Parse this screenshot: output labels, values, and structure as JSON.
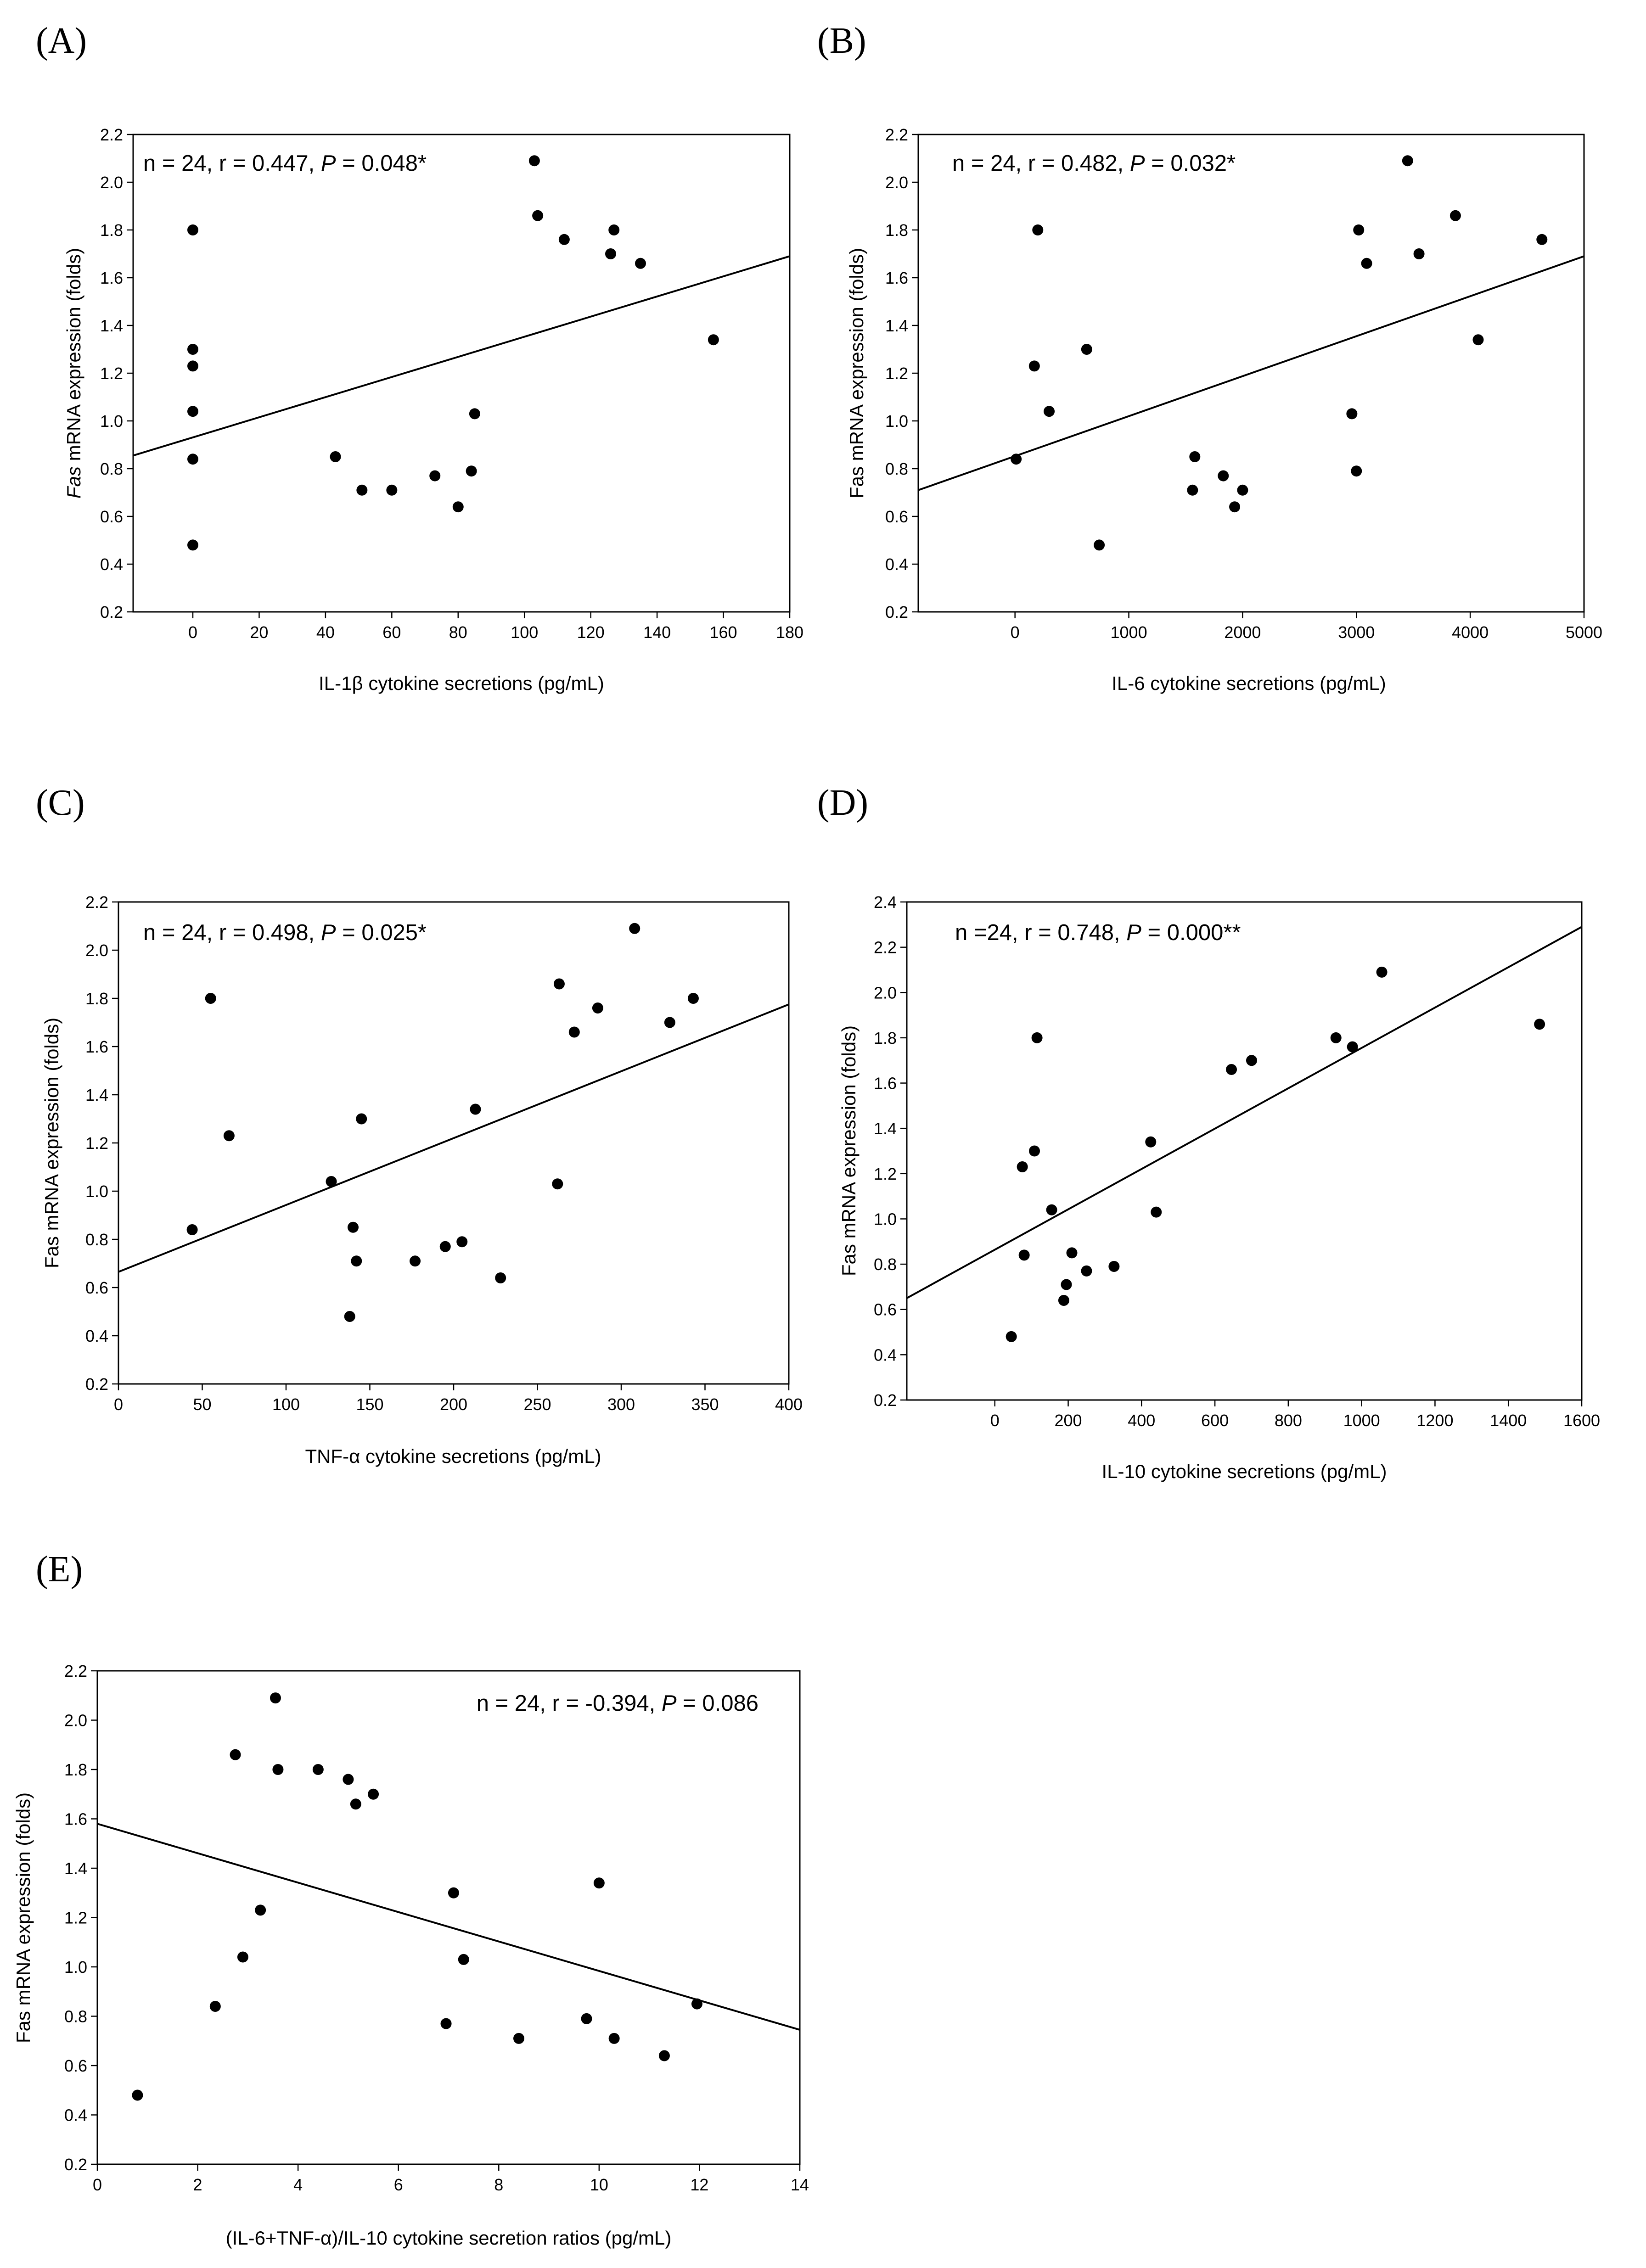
{
  "chart_data": [
    {
      "type": "scatter",
      "panel_label": "(A)",
      "annotation": {
        "pre": "n = 24, r = 0.447, ",
        "p_symbol": "P",
        "post": " = 0.048*"
      },
      "xlabel": {
        "parts": [
          {
            "text": "IL-1β cytokine secretions (pg/mL)",
            "italic": false
          }
        ]
      },
      "ylabel": {
        "parts": [
          {
            "text": "Fas",
            "italic": true
          },
          {
            "text": " mRNA expression (folds)",
            "italic": false
          }
        ]
      },
      "xlim": [
        -18,
        180
      ],
      "ylim": [
        0.2,
        2.2
      ],
      "xticks": [
        0,
        20,
        40,
        60,
        80,
        100,
        120,
        140,
        160,
        180
      ],
      "yticks": [
        "0.2",
        "0.4",
        "0.6",
        "0.8",
        "1.0",
        "1.2",
        "1.4",
        "1.6",
        "1.8",
        "2.0",
        "2.2"
      ],
      "points": [
        {
          "x": 0,
          "y": 1.8
        },
        {
          "x": 0,
          "y": 1.3
        },
        {
          "x": 0,
          "y": 1.23
        },
        {
          "x": 0,
          "y": 1.04
        },
        {
          "x": 0,
          "y": 0.84
        },
        {
          "x": 0,
          "y": 0.48
        },
        {
          "x": 43,
          "y": 0.85
        },
        {
          "x": 51,
          "y": 0.71
        },
        {
          "x": 60,
          "y": 0.71
        },
        {
          "x": 73,
          "y": 0.77
        },
        {
          "x": 80,
          "y": 0.64
        },
        {
          "x": 84,
          "y": 0.79
        },
        {
          "x": 85,
          "y": 1.03
        },
        {
          "x": 103,
          "y": 2.09
        },
        {
          "x": 104,
          "y": 1.86
        },
        {
          "x": 112,
          "y": 1.76
        },
        {
          "x": 126,
          "y": 1.7
        },
        {
          "x": 127,
          "y": 1.8
        },
        {
          "x": 135,
          "y": 1.66
        },
        {
          "x": 157,
          "y": 1.34
        }
      ],
      "fit_line": [
        [
          -18,
          0.855
        ],
        [
          180,
          1.69
        ]
      ]
    },
    {
      "type": "scatter",
      "panel_label": "(B)",
      "annotation": {
        "pre": "n = 24, r = 0.482, ",
        "p_symbol": "P",
        "post": " = 0.032*"
      },
      "xlabel": {
        "parts": [
          {
            "text": "IL-6 cytokine secretions (pg/mL)",
            "italic": false
          }
        ]
      },
      "ylabel": {
        "parts": [
          {
            "text": "Fas mRNA expression (folds)",
            "italic": false
          }
        ]
      },
      "xlim": [
        -850,
        5000
      ],
      "ylim": [
        0.2,
        2.2
      ],
      "xticks": [
        0,
        1000,
        2000,
        3000,
        4000,
        5000
      ],
      "yticks": [
        "0.2",
        "0.4",
        "0.6",
        "0.8",
        "1.0",
        "1.2",
        "1.4",
        "1.6",
        "1.8",
        "2.0",
        "2.2"
      ],
      "points": [
        {
          "x": 10,
          "y": 0.84
        },
        {
          "x": 170,
          "y": 1.23
        },
        {
          "x": 200,
          "y": 1.8
        },
        {
          "x": 300,
          "y": 1.04
        },
        {
          "x": 630,
          "y": 1.3
        },
        {
          "x": 740,
          "y": 0.48
        },
        {
          "x": 1560,
          "y": 0.71
        },
        {
          "x": 1580,
          "y": 0.85
        },
        {
          "x": 1830,
          "y": 0.77
        },
        {
          "x": 1930,
          "y": 0.64
        },
        {
          "x": 2000,
          "y": 0.71
        },
        {
          "x": 2960,
          "y": 1.03
        },
        {
          "x": 3000,
          "y": 0.79
        },
        {
          "x": 3020,
          "y": 1.8
        },
        {
          "x": 3090,
          "y": 1.66
        },
        {
          "x": 3450,
          "y": 2.09
        },
        {
          "x": 3550,
          "y": 1.7
        },
        {
          "x": 3870,
          "y": 1.86
        },
        {
          "x": 4070,
          "y": 1.34
        },
        {
          "x": 4630,
          "y": 1.76
        }
      ],
      "fit_line": [
        [
          -850,
          0.71
        ],
        [
          5000,
          1.69
        ]
      ]
    },
    {
      "type": "scatter",
      "panel_label": "(C)",
      "annotation": {
        "pre": "n = 24, r = 0.498, ",
        "p_symbol": "P",
        "post": " = 0.025*"
      },
      "xlabel": {
        "parts": [
          {
            "text": "TNF-α cytokine secretions (pg/mL)",
            "italic": false
          }
        ]
      },
      "ylabel": {
        "parts": [
          {
            "text": "Fas mRNA expression (folds)",
            "italic": false
          }
        ]
      },
      "xlim": [
        0,
        400
      ],
      "ylim": [
        0.2,
        2.2
      ],
      "xticks": [
        0,
        50,
        100,
        150,
        200,
        250,
        300,
        350,
        400
      ],
      "yticks": [
        "0.2",
        "0.4",
        "0.6",
        "0.8",
        "1.0",
        "1.2",
        "1.4",
        "1.6",
        "1.8",
        "2.0",
        "2.2"
      ],
      "points": [
        {
          "x": 44,
          "y": 0.84
        },
        {
          "x": 55,
          "y": 1.8
        },
        {
          "x": 66,
          "y": 1.23
        },
        {
          "x": 127,
          "y": 1.04
        },
        {
          "x": 138,
          "y": 0.48
        },
        {
          "x": 140,
          "y": 0.85
        },
        {
          "x": 142,
          "y": 0.71
        },
        {
          "x": 145,
          "y": 1.3
        },
        {
          "x": 177,
          "y": 0.71
        },
        {
          "x": 195,
          "y": 0.77
        },
        {
          "x": 205,
          "y": 0.79
        },
        {
          "x": 213,
          "y": 1.34
        },
        {
          "x": 228,
          "y": 0.64
        },
        {
          "x": 262,
          "y": 1.03
        },
        {
          "x": 263,
          "y": 1.86
        },
        {
          "x": 272,
          "y": 1.66
        },
        {
          "x": 286,
          "y": 1.76
        },
        {
          "x": 308,
          "y": 2.09
        },
        {
          "x": 329,
          "y": 1.7
        },
        {
          "x": 343,
          "y": 1.8
        }
      ],
      "fit_line": [
        [
          0,
          0.665
        ],
        [
          400,
          1.775
        ]
      ]
    },
    {
      "type": "scatter",
      "panel_label": "(D)",
      "annotation": {
        "pre": "n =24, r = 0.748, ",
        "p_symbol": "P",
        "post": " = 0.000**"
      },
      "xlabel": {
        "parts": [
          {
            "text": "IL-10 cytokine secretions (pg/mL)",
            "italic": false
          }
        ]
      },
      "ylabel": {
        "parts": [
          {
            "text": "Fas mRNA expression (folds)",
            "italic": false
          }
        ]
      },
      "xlim": [
        -240,
        1600
      ],
      "ylim": [
        0.2,
        2.4
      ],
      "xticks": [
        0,
        200,
        400,
        600,
        800,
        1000,
        1200,
        1400,
        1600
      ],
      "yticks": [
        "0.2",
        "0.4",
        "0.6",
        "0.8",
        "1.0",
        "1.2",
        "1.4",
        "1.6",
        "1.8",
        "2.0",
        "2.2",
        "2.4"
      ],
      "points": [
        {
          "x": 45,
          "y": 0.48
        },
        {
          "x": 75,
          "y": 1.23
        },
        {
          "x": 80,
          "y": 0.84
        },
        {
          "x": 108,
          "y": 1.3
        },
        {
          "x": 115,
          "y": 1.8
        },
        {
          "x": 155,
          "y": 1.04
        },
        {
          "x": 188,
          "y": 0.64
        },
        {
          "x": 195,
          "y": 0.71
        },
        {
          "x": 210,
          "y": 0.85
        },
        {
          "x": 250,
          "y": 0.77
        },
        {
          "x": 325,
          "y": 0.79
        },
        {
          "x": 425,
          "y": 1.34
        },
        {
          "x": 440,
          "y": 1.03
        },
        {
          "x": 645,
          "y": 1.66
        },
        {
          "x": 700,
          "y": 1.7
        },
        {
          "x": 930,
          "y": 1.8
        },
        {
          "x": 975,
          "y": 1.76
        },
        {
          "x": 1055,
          "y": 2.09
        },
        {
          "x": 1485,
          "y": 1.86
        }
      ],
      "fit_line": [
        [
          -240,
          0.65
        ],
        [
          1600,
          2.29
        ]
      ]
    },
    {
      "type": "scatter",
      "panel_label": "(E)",
      "annotation": {
        "pre": "n = 24, r = -0.394, ",
        "p_symbol": "P",
        "post": " = 0.086"
      },
      "xlabel": {
        "parts": [
          {
            "text": "(IL-6+TNF-α)/IL-10 cytokine secretion ratios (pg/mL)",
            "italic": false
          }
        ]
      },
      "ylabel": {
        "parts": [
          {
            "text": "Fas mRNA expression (folds)",
            "italic": false
          }
        ]
      },
      "xlim": [
        0,
        14
      ],
      "ylim": [
        0.2,
        2.2
      ],
      "xticks": [
        0,
        2,
        4,
        6,
        8,
        10,
        12,
        14
      ],
      "yticks": [
        "0.2",
        "0.4",
        "0.6",
        "0.8",
        "1.0",
        "1.2",
        "1.4",
        "1.6",
        "1.8",
        "2.0",
        "2.2"
      ],
      "points": [
        {
          "x": 0.8,
          "y": 0.48
        },
        {
          "x": 2.35,
          "y": 0.84
        },
        {
          "x": 2.75,
          "y": 1.86
        },
        {
          "x": 2.9,
          "y": 1.04
        },
        {
          "x": 3.25,
          "y": 1.23
        },
        {
          "x": 3.55,
          "y": 2.09
        },
        {
          "x": 3.6,
          "y": 1.8
        },
        {
          "x": 4.4,
          "y": 1.8
        },
        {
          "x": 5.0,
          "y": 1.76
        },
        {
          "x": 5.15,
          "y": 1.66
        },
        {
          "x": 5.5,
          "y": 1.7
        },
        {
          "x": 6.95,
          "y": 0.77
        },
        {
          "x": 7.1,
          "y": 1.3
        },
        {
          "x": 7.3,
          "y": 1.03
        },
        {
          "x": 8.4,
          "y": 0.71
        },
        {
          "x": 9.75,
          "y": 0.79
        },
        {
          "x": 10.0,
          "y": 1.34
        },
        {
          "x": 10.3,
          "y": 0.71
        },
        {
          "x": 11.3,
          "y": 0.64
        },
        {
          "x": 11.95,
          "y": 0.85
        }
      ],
      "fit_line": [
        [
          0,
          1.58
        ],
        [
          14,
          0.745
        ]
      ]
    }
  ]
}
